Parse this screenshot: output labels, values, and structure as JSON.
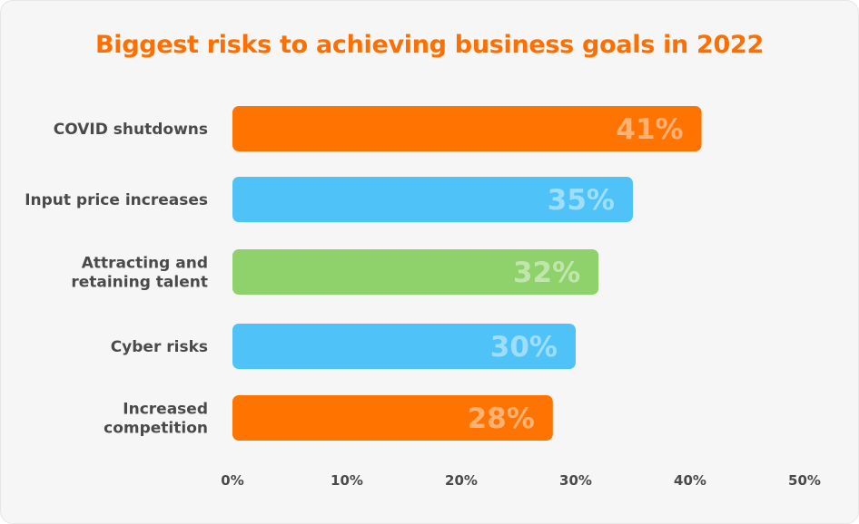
{
  "chart_data": {
    "type": "bar",
    "orientation": "horizontal",
    "title": "Biggest risks to achieving business goals in 2022",
    "categories": [
      [
        "COVID shutdowns"
      ],
      [
        "Input price increases"
      ],
      [
        "Attracting and",
        "retaining talent"
      ],
      [
        "Cyber risks"
      ],
      [
        "Increased",
        "competition"
      ]
    ],
    "values": [
      41,
      35,
      32,
      30,
      28
    ],
    "value_labels": [
      "41%",
      "35%",
      "32%",
      "30%",
      "28%"
    ],
    "bar_colors": [
      "#ff7300",
      "#4fc3f7",
      "#8fd16a",
      "#4fc3f7",
      "#ff7300"
    ],
    "xlim": [
      0,
      50
    ],
    "xticks": [
      0,
      10,
      20,
      30,
      40,
      50
    ],
    "xtick_labels": [
      "0%",
      "10%",
      "20%",
      "30%",
      "40%",
      "50%"
    ],
    "grid": false,
    "legend": "none"
  },
  "colors": {
    "title": "#ff6f00",
    "background": "#f6f6f6",
    "text": "#4a4a4a"
  }
}
